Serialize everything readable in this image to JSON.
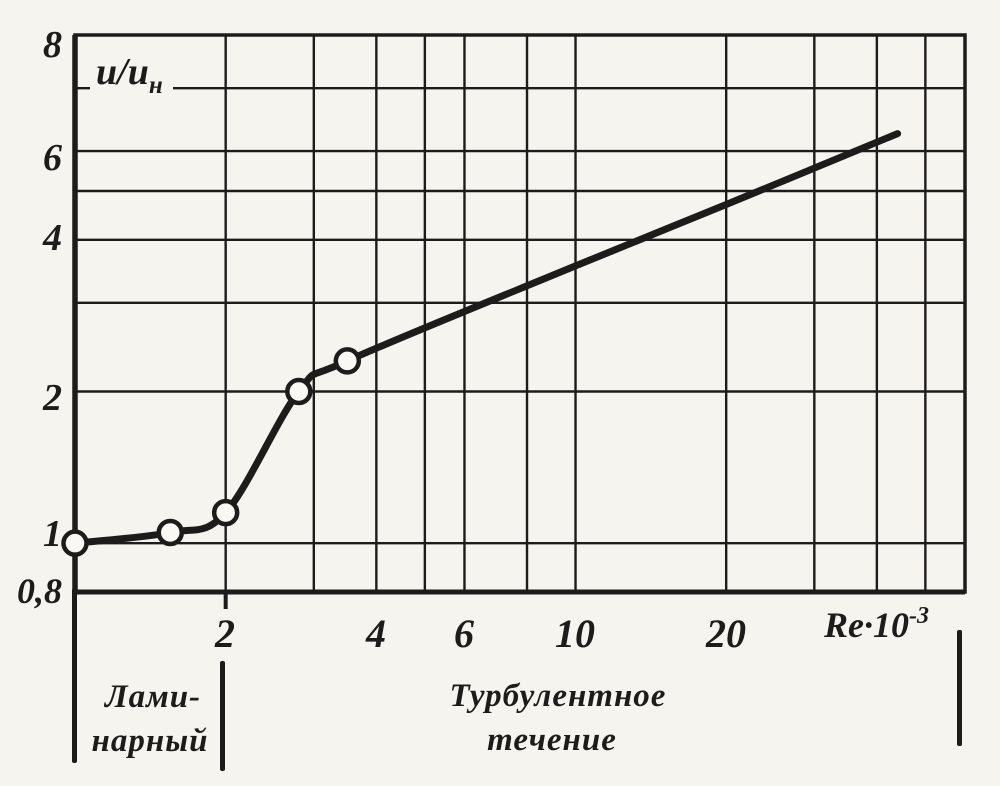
{
  "figure": {
    "ratio_label": {
      "base": "u/u",
      "sub": "н"
    },
    "x_axis_label": {
      "base": "Re·10",
      "sup": "-3"
    },
    "y_tick_labels": [
      "8",
      "6",
      "4",
      "2",
      "1",
      "0,8"
    ],
    "x_tick_labels": [
      "2",
      "4",
      "6",
      "10",
      "20"
    ],
    "regions": {
      "laminar_line1": "Лами-",
      "laminar_line2": "нарный",
      "turbulent_line1": "Турбулентное",
      "turbulent_line2": "течение"
    }
  },
  "chart_data": {
    "type": "line",
    "x_scale": "log",
    "y_scale": "log",
    "xlabel": "Re·10⁻³",
    "ylabel": "u/uн",
    "xlim": [
      1,
      60
    ],
    "ylim": [
      0.8,
      10.2
    ],
    "x_gridlines": [
      2,
      3,
      4,
      5,
      6,
      8,
      10,
      20,
      30,
      40,
      50
    ],
    "y_gridlines": [
      1,
      2,
      3,
      4,
      5,
      6,
      8
    ],
    "x_tick_values": [
      2,
      4,
      6,
      10,
      20
    ],
    "y_tick_values": [
      8,
      6,
      4,
      2,
      1,
      0.8
    ],
    "grid": true,
    "legend": "none",
    "series": [
      {
        "name": "u/uн vs Re·10⁻³",
        "points": [
          [
            1,
            1.0
          ],
          [
            1.55,
            1.05
          ],
          [
            2,
            1.15
          ],
          [
            2.8,
            2.0
          ],
          [
            3.5,
            2.3
          ],
          [
            10,
            3.55
          ],
          [
            20,
            4.7
          ],
          [
            44,
            6.5
          ]
        ],
        "marker_points": [
          [
            1,
            1.0
          ],
          [
            1.55,
            1.05
          ],
          [
            2,
            1.15
          ],
          [
            2.8,
            2.0
          ],
          [
            3.5,
            2.3
          ]
        ]
      }
    ],
    "annotations": [
      {
        "text": "Ламинарный",
        "x_range": [
          1,
          2
        ],
        "position": "below-axis"
      },
      {
        "text": "Турбулентное течение",
        "x_range": [
          2,
          60
        ],
        "position": "below-axis"
      }
    ],
    "colors": {
      "ink": "#1e1c1a",
      "paper": "#f6f4ef",
      "marker_fill": "#faf8f3"
    }
  }
}
